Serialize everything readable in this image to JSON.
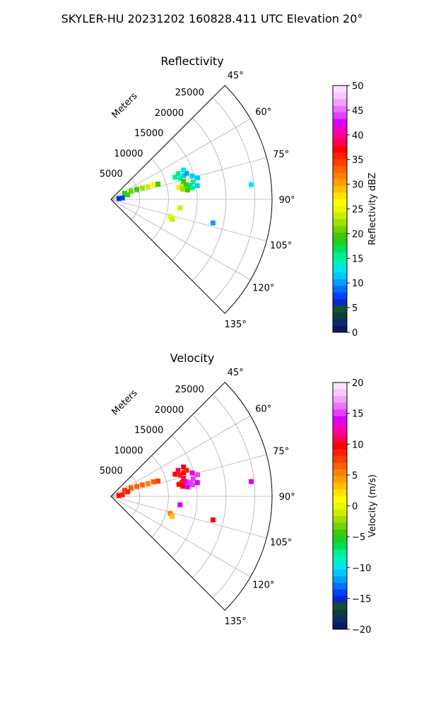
{
  "figure": {
    "suptitle": "SKYLER-HU  20231202  160828.411 UTC Elevation 20°"
  },
  "chart_data": [
    {
      "type": "polar-sector",
      "title": "Reflectivity",
      "radial_axis_label": "Meters",
      "radial_ticks": [
        5000,
        10000,
        15000,
        20000,
        25000
      ],
      "radial_tick_labels": [
        "5000",
        "10000",
        "15000",
        "20000",
        "25000"
      ],
      "radial_range": [
        0,
        28000
      ],
      "theta_range_deg": [
        45,
        135
      ],
      "theta_ticks_deg": [
        45,
        60,
        75,
        90,
        105,
        120,
        135
      ],
      "theta_tick_labels": [
        "45°",
        "60°",
        "75°",
        "90°",
        "105°",
        "120°",
        "135°"
      ],
      "grid": true,
      "colorbar": {
        "label": "Reflectivity dBZ",
        "range": [
          0,
          50
        ],
        "ticks": [
          0,
          5,
          10,
          15,
          20,
          25,
          30,
          35,
          40,
          45,
          50
        ],
        "tick_labels": [
          "0",
          "5",
          "10",
          "15",
          "20",
          "25",
          "30",
          "35",
          "40",
          "45",
          "50"
        ],
        "colors": [
          "#0a1a5c",
          "#0c2a66",
          "#0f3d3d",
          "#145032",
          "#0a2ac8",
          "#0040ff",
          "#0070ff",
          "#00a0ff",
          "#00c8ff",
          "#00e6f0",
          "#00f0c0",
          "#00f090",
          "#00e060",
          "#20d020",
          "#40c800",
          "#70d400",
          "#a0e000",
          "#c8f000",
          "#e8f800",
          "#ffff00",
          "#ffe000",
          "#ffc000",
          "#ffa000",
          "#ff8000",
          "#ff6000",
          "#ff4000",
          "#ff2000",
          "#ff0000",
          "#ff0050",
          "#ff0090",
          "#f000c8",
          "#d800ff",
          "#e040ff",
          "#ec70ff",
          "#f4a0ff",
          "#f8c8ff",
          "#fce0ff"
        ]
      },
      "points": [
        {
          "range": 12600,
          "azimuth_deg": 73,
          "value": 14
        },
        {
          "range": 13300,
          "azimuth_deg": 72,
          "value": 12
        },
        {
          "range": 13900,
          "azimuth_deg": 71,
          "value": 10
        },
        {
          "range": 12500,
          "azimuth_deg": 69,
          "value": 15
        },
        {
          "range": 13600,
          "azimuth_deg": 68,
          "value": 13
        },
        {
          "range": 11800,
          "azimuth_deg": 71,
          "value": 16
        },
        {
          "range": 12000,
          "azimuth_deg": 80,
          "value": 25
        },
        {
          "range": 12600,
          "azimuth_deg": 79,
          "value": 23
        },
        {
          "range": 13300,
          "azimuth_deg": 79,
          "value": 20
        },
        {
          "range": 14000,
          "azimuth_deg": 80,
          "value": 17
        },
        {
          "range": 14600,
          "azimuth_deg": 78,
          "value": 15
        },
        {
          "range": 12600,
          "azimuth_deg": 82,
          "value": 22
        },
        {
          "range": 13400,
          "azimuth_deg": 83,
          "value": 19
        },
        {
          "range": 14300,
          "azimuth_deg": 82,
          "value": 16
        },
        {
          "range": 15200,
          "azimuth_deg": 81,
          "value": 12
        },
        {
          "range": 15500,
          "azimuth_deg": 76,
          "value": 11
        },
        {
          "range": 14700,
          "azimuth_deg": 74,
          "value": 12
        },
        {
          "range": 13000,
          "azimuth_deg": 76,
          "value": 20
        },
        {
          "range": 3800,
          "azimuth_deg": 67,
          "value": 21
        },
        {
          "range": 4800,
          "azimuth_deg": 69,
          "value": 20
        },
        {
          "range": 5800,
          "azimuth_deg": 70,
          "value": 22
        },
        {
          "range": 6800,
          "azimuth_deg": 71,
          "value": 24
        },
        {
          "range": 7800,
          "azimuth_deg": 71,
          "value": 26
        },
        {
          "range": 8600,
          "azimuth_deg": 72,
          "value": 20
        },
        {
          "range": 2600,
          "azimuth_deg": 66,
          "value": 18
        },
        {
          "range": 3000,
          "azimuth_deg": 75,
          "value": 19
        },
        {
          "range": 1400,
          "azimuth_deg": 84,
          "value": 6
        },
        {
          "range": 2000,
          "azimuth_deg": 83,
          "value": 8
        },
        {
          "range": 24500,
          "azimuth_deg": 84,
          "value": 13
        },
        {
          "range": 12100,
          "azimuth_deg": 97,
          "value": 24
        },
        {
          "range": 18200,
          "azimuth_deg": 103,
          "value": 10
        },
        {
          "range": 10700,
          "azimuth_deg": 106,
          "value": 25
        },
        {
          "range": 11200,
          "azimuth_deg": 108,
          "value": 24
        }
      ]
    },
    {
      "type": "polar-sector",
      "title": "Velocity",
      "radial_axis_label": "Meters",
      "radial_ticks": [
        5000,
        10000,
        15000,
        20000,
        25000
      ],
      "radial_tick_labels": [
        "5000",
        "10000",
        "15000",
        "20000",
        "25000"
      ],
      "radial_range": [
        0,
        28000
      ],
      "theta_range_deg": [
        45,
        135
      ],
      "theta_ticks_deg": [
        45,
        60,
        75,
        90,
        105,
        120,
        135
      ],
      "theta_tick_labels": [
        "45°",
        "60°",
        "75°",
        "90°",
        "105°",
        "120°",
        "135°"
      ],
      "grid": true,
      "colorbar": {
        "label": "Velocity (m/s)",
        "range": [
          -20,
          20
        ],
        "ticks": [
          -20,
          -15,
          -10,
          -5,
          0,
          5,
          10,
          15,
          20
        ],
        "tick_labels": [
          "−20",
          "−15",
          "−10",
          "−5",
          "0",
          "5",
          "10",
          "15",
          "20"
        ],
        "colors": [
          "#0a1a5c",
          "#0c2a66",
          "#0f3d3d",
          "#145032",
          "#0a2ac8",
          "#0040ff",
          "#0070ff",
          "#00a0ff",
          "#00c8ff",
          "#00e6f0",
          "#00f0c0",
          "#00f090",
          "#00e060",
          "#20d020",
          "#40c800",
          "#70d400",
          "#a0e000",
          "#c8f000",
          "#e8f800",
          "#ffff00",
          "#ffe000",
          "#ffc000",
          "#ffa000",
          "#ff8000",
          "#ff6000",
          "#ff4000",
          "#ff2000",
          "#ff0000",
          "#ff0050",
          "#ff0090",
          "#f000c8",
          "#d800ff",
          "#e040ff",
          "#ec70ff",
          "#f4a0ff",
          "#f8c8ff",
          "#fce0ff"
        ]
      },
      "points": [
        {
          "range": 12600,
          "azimuth_deg": 73,
          "value": 9
        },
        {
          "range": 13300,
          "azimuth_deg": 72,
          "value": 10
        },
        {
          "range": 13900,
          "azimuth_deg": 71,
          "value": 9
        },
        {
          "range": 12500,
          "azimuth_deg": 69,
          "value": 11
        },
        {
          "range": 13600,
          "azimuth_deg": 68,
          "value": 10
        },
        {
          "range": 11800,
          "azimuth_deg": 71,
          "value": 10
        },
        {
          "range": 12000,
          "azimuth_deg": 80,
          "value": 10
        },
        {
          "range": 12600,
          "azimuth_deg": 79,
          "value": 9
        },
        {
          "range": 13300,
          "azimuth_deg": 79,
          "value": 14
        },
        {
          "range": 14000,
          "azimuth_deg": 80,
          "value": 15
        },
        {
          "range": 14600,
          "azimuth_deg": 78,
          "value": 15
        },
        {
          "range": 12600,
          "azimuth_deg": 82,
          "value": 10
        },
        {
          "range": 13400,
          "azimuth_deg": 83,
          "value": 14
        },
        {
          "range": 14300,
          "azimuth_deg": 82,
          "value": 15
        },
        {
          "range": 15200,
          "azimuth_deg": 81,
          "value": 14
        },
        {
          "range": 15500,
          "azimuth_deg": 76,
          "value": 15
        },
        {
          "range": 14700,
          "azimuth_deg": 74,
          "value": 13
        },
        {
          "range": 13000,
          "azimuth_deg": 76,
          "value": 11
        },
        {
          "range": 3800,
          "azimuth_deg": 67,
          "value": 7
        },
        {
          "range": 4800,
          "azimuth_deg": 69,
          "value": 6
        },
        {
          "range": 5800,
          "azimuth_deg": 70,
          "value": 6
        },
        {
          "range": 6800,
          "azimuth_deg": 71,
          "value": 5
        },
        {
          "range": 7800,
          "azimuth_deg": 71,
          "value": 6
        },
        {
          "range": 8600,
          "azimuth_deg": 72,
          "value": 8
        },
        {
          "range": 2600,
          "azimuth_deg": 66,
          "value": 8
        },
        {
          "range": 3000,
          "azimuth_deg": 75,
          "value": 9
        },
        {
          "range": 1400,
          "azimuth_deg": 84,
          "value": 10
        },
        {
          "range": 2000,
          "azimuth_deg": 83,
          "value": 9
        },
        {
          "range": 24500,
          "azimuth_deg": 84,
          "value": 14
        },
        {
          "range": 12100,
          "azimuth_deg": 97,
          "value": 14
        },
        {
          "range": 18200,
          "azimuth_deg": 103,
          "value": 10
        },
        {
          "range": 10700,
          "azimuth_deg": 106,
          "value": 5
        },
        {
          "range": 11200,
          "azimuth_deg": 108,
          "value": 3
        }
      ]
    }
  ]
}
